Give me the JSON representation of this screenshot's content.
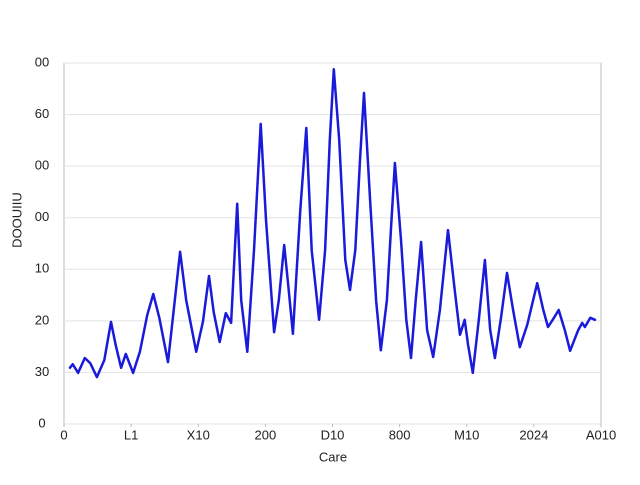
{
  "chart_data": {
    "type": "line",
    "xlabel": "Care",
    "ylabel": "DOOUIIU",
    "xlim": [
      0,
      8
    ],
    "ylim": [
      0,
      70
    ],
    "xticks": [
      0,
      {
        "value": 1,
        "label": "L1"
      },
      {
        "value": 2,
        "label": "X10"
      },
      {
        "value": 3,
        "label": "200"
      },
      {
        "value": 4,
        "label": "D10"
      },
      {
        "value": 5,
        "label": "800"
      },
      {
        "value": 6,
        "label": "M10"
      },
      {
        "value": 7,
        "label": "2024"
      },
      {
        "value": 8,
        "label": "A010"
      }
    ],
    "yticks": [
      0,
      {
        "value": 10,
        "label": "30"
      },
      {
        "value": 20,
        "label": "20"
      },
      {
        "value": 30,
        "label": "10"
      },
      {
        "value": 40,
        "label": "00"
      },
      {
        "value": 50,
        "label": "00"
      },
      {
        "value": 60,
        "label": "60"
      },
      {
        "value": 70,
        "label": "00"
      }
    ],
    "grid": true,
    "series": [
      {
        "color": "#1a1adb",
        "x": [
          0.09,
          0.13,
          0.21,
          0.31,
          0.39,
          0.49,
          0.6,
          0.7,
          0.77,
          0.85,
          0.92,
          1.03,
          1.13,
          1.24,
          1.33,
          1.42,
          1.55,
          1.65,
          1.73,
          1.82,
          1.97,
          2.07,
          2.16,
          2.23,
          2.32,
          2.41,
          2.49,
          2.58,
          2.64,
          2.73,
          2.83,
          2.93,
          3.01,
          3.13,
          3.2,
          3.28,
          3.34,
          3.41,
          3.52,
          3.61,
          3.69,
          3.8,
          3.89,
          3.96,
          4.02,
          4.1,
          4.19,
          4.26,
          4.34,
          4.41,
          4.47,
          4.56,
          4.65,
          4.72,
          4.81,
          4.87,
          4.93,
          5.02,
          5.1,
          5.17,
          5.24,
          5.32,
          5.41,
          5.5,
          5.6,
          5.72,
          5.82,
          5.9,
          5.97,
          6.02,
          6.09,
          6.18,
          6.27,
          6.35,
          6.42,
          6.51,
          6.6,
          6.69,
          6.79,
          6.9,
          7.05,
          7.14,
          7.21,
          7.28,
          7.37,
          7.46,
          7.54,
          7.66,
          7.72,
          7.76,
          7.84,
          7.91
        ],
        "values": [
          10.9,
          11.6,
          9.9,
          12.8,
          11.8,
          9.1,
          12.4,
          19.8,
          15.3,
          10.9,
          13.6,
          9.9,
          14.0,
          21.1,
          25.2,
          20.6,
          12.0,
          24.0,
          33.4,
          24.0,
          14.0,
          19.8,
          28.7,
          21.7,
          15.9,
          21.5,
          19.6,
          42.7,
          24.0,
          14.0,
          33.7,
          58.2,
          39.6,
          17.8,
          24.0,
          34.7,
          27.0,
          17.5,
          41.5,
          57.4,
          33.7,
          20.2,
          33.7,
          55.1,
          68.8,
          55.1,
          31.8,
          26.0,
          33.7,
          51.2,
          64.2,
          43.4,
          24.0,
          14.3,
          24.0,
          37.6,
          50.6,
          35.7,
          20.2,
          12.8,
          24.0,
          35.3,
          18.2,
          13.0,
          22.1,
          37.6,
          26.0,
          17.3,
          20.2,
          15.3,
          9.9,
          20.2,
          31.8,
          18.2,
          12.8,
          20.6,
          29.3,
          22.1,
          14.9,
          19.2,
          27.3,
          22.1,
          18.8,
          20.2,
          22.1,
          18.2,
          14.2,
          18.2,
          19.6,
          18.8,
          20.6,
          20.2
        ]
      }
    ]
  }
}
